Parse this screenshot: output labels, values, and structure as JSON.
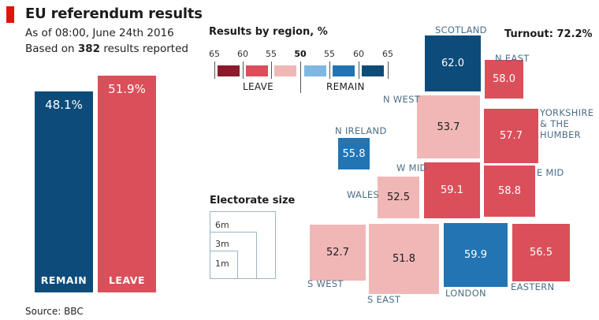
{
  "header": {
    "title": "EU referendum results",
    "subtitle_line1": "As of 08:00, June 24th 2016",
    "subtitle_prefix": "Based on ",
    "subtitle_count": "382",
    "subtitle_suffix": " results reported"
  },
  "source": "Source: BBC",
  "colors": {
    "remain_dark": "#0d4c7a",
    "remain_mid": "#2274b3",
    "remain_light": "#7db8e2",
    "leave_dark": "#8b1a2b",
    "leave_mid": "#db4f5a",
    "leave_light": "#f1b7b7"
  },
  "legend": {
    "title": "Results by region, %",
    "ticks": [
      "65",
      "60",
      "55",
      "50",
      "55",
      "60",
      "65"
    ],
    "leave_label": "LEAVE",
    "remain_label": "REMAIN"
  },
  "turnout": "Turnout: 72.2%",
  "electorate": {
    "title": "Electorate size",
    "labels": [
      "6m",
      "3m",
      "1m"
    ]
  },
  "chart_data": [
    {
      "type": "bar",
      "title": "EU referendum results",
      "categories": [
        "REMAIN",
        "LEAVE"
      ],
      "values": [
        48.1,
        51.9
      ],
      "value_labels": [
        "48.1%",
        "51.9%"
      ],
      "colors": [
        "#0d4c7a",
        "#db4f5a"
      ]
    },
    {
      "type": "heatmap",
      "title": "Results by region, %",
      "regions": [
        {
          "name": "SCOTLAND",
          "side": "remain",
          "value": "62.0",
          "share": 62.0,
          "electorate_m": 4.1
        },
        {
          "name": "N EAST",
          "side": "leave",
          "value": "58.0",
          "share": 58.0,
          "electorate_m": 2.0
        },
        {
          "name": "N WEST",
          "side": "leave",
          "value": "53.7",
          "share": 53.7,
          "electorate_m": 5.2
        },
        {
          "name": "YORKSHIRE\n& THE\nHUMBER",
          "side": "leave",
          "value": "57.7",
          "share": 57.7,
          "electorate_m": 3.9
        },
        {
          "name": "N IRELAND",
          "side": "remain",
          "value": "55.8",
          "share": 55.8,
          "electorate_m": 1.3
        },
        {
          "name": "W MID",
          "side": "leave",
          "value": "59.1",
          "share": 59.1,
          "electorate_m": 4.1
        },
        {
          "name": "E MID",
          "side": "leave",
          "value": "58.8",
          "share": 58.8,
          "electorate_m": 3.4
        },
        {
          "name": "WALES",
          "side": "leave",
          "value": "52.5",
          "share": 52.5,
          "electorate_m": 2.3
        },
        {
          "name": "S WEST",
          "side": "leave",
          "value": "52.7",
          "share": 52.7,
          "electorate_m": 4.1
        },
        {
          "name": "S EAST",
          "side": "leave",
          "value": "51.8",
          "share": 51.8,
          "electorate_m": 6.4
        },
        {
          "name": "LONDON",
          "side": "remain",
          "value": "59.9",
          "share": 59.9,
          "electorate_m": 5.4
        },
        {
          "name": "EASTERN",
          "side": "leave",
          "value": "56.5",
          "share": 56.5,
          "electorate_m": 4.4
        }
      ]
    }
  ]
}
